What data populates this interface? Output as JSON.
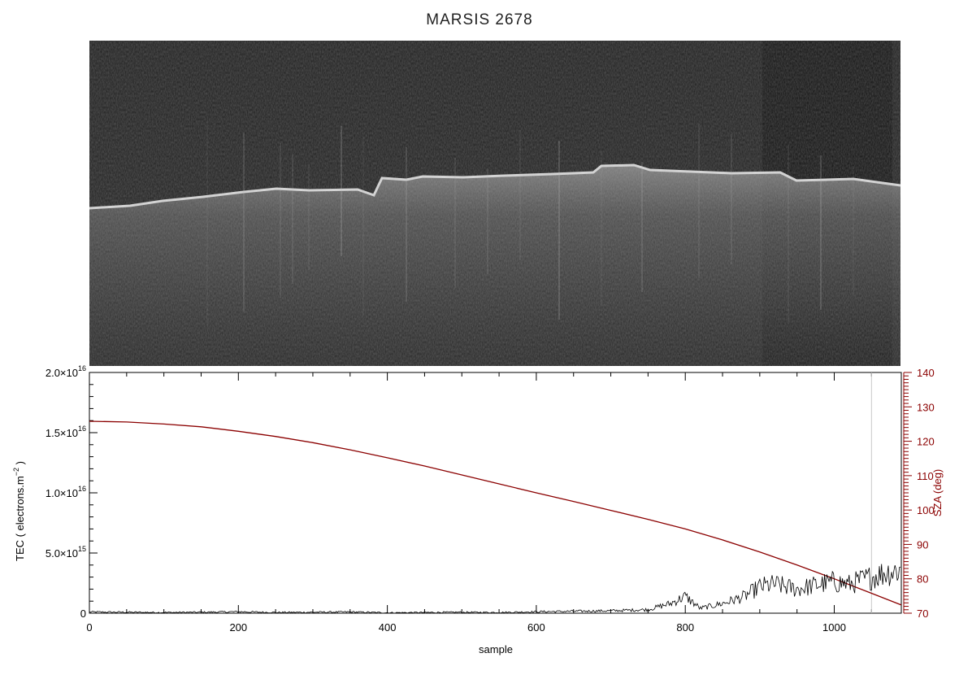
{
  "figure": {
    "title": "MARSIS 2678"
  },
  "radargram": {
    "description_visible": false
  },
  "chart_data": {
    "type": "line",
    "title": "MARSIS 2678",
    "xlabel": "sample",
    "ylabel_left": "TEC ( electrons.m^-2 )",
    "ylabel_left_parts": {
      "pre": "TEC ( electrons.m",
      "exp": "−2",
      "post": " )"
    },
    "ylabel_right": "SZA (deg)",
    "xlim": [
      0,
      1090
    ],
    "ylim_left": [
      0,
      2e+16
    ],
    "ylim_right": [
      70,
      140
    ],
    "x_ticks": [
      {
        "value": 0,
        "label": "0"
      },
      {
        "value": 200,
        "label": "200"
      },
      {
        "value": 400,
        "label": "400"
      },
      {
        "value": 600,
        "label": "600"
      },
      {
        "value": 800,
        "label": "800"
      },
      {
        "value": 1000,
        "label": "1000"
      }
    ],
    "y_left_ticks": [
      {
        "value": 0,
        "mant": "0",
        "exp": ""
      },
      {
        "value": 5000000000000000.0,
        "mant": "5.0×10",
        "exp": "15"
      },
      {
        "value": 1e+16,
        "mant": "1.0×10",
        "exp": "16"
      },
      {
        "value": 1.5e+16,
        "mant": "1.5×10",
        "exp": "16"
      },
      {
        "value": 2e+16,
        "mant": "2.0×10",
        "exp": "16"
      }
    ],
    "y_right_ticks": [
      70,
      80,
      90,
      100,
      110,
      120,
      130,
      140
    ],
    "vline_x": 1050,
    "series": [
      {
        "axis": "right",
        "color": "#8b0000",
        "x": [
          0,
          50,
          100,
          150,
          200,
          250,
          300,
          350,
          400,
          450,
          500,
          550,
          600,
          650,
          700,
          750,
          800,
          850,
          900,
          950,
          1000,
          1050,
          1090
        ],
        "y": [
          125.8,
          125.6,
          125.0,
          124.2,
          122.9,
          121.4,
          119.6,
          117.5,
          115.2,
          112.8,
          110.2,
          107.6,
          105.0,
          102.5,
          99.9,
          97.3,
          94.5,
          91.3,
          87.8,
          84.0,
          80.0,
          75.8,
          72.4
        ]
      },
      {
        "axis": "left",
        "color": "#000000",
        "x": [
          0,
          50,
          100,
          150,
          200,
          250,
          300,
          350,
          400,
          450,
          500,
          550,
          600,
          650,
          700,
          750,
          780,
          800,
          820,
          850,
          880,
          900,
          920,
          950,
          980,
          1000,
          1020,
          1050,
          1070,
          1090
        ],
        "y": [
          100000000000000.0,
          80000000000000.0,
          60000000000000.0,
          80000000000000.0,
          120000000000000.0,
          60000000000000.0,
          80000000000000.0,
          100000000000000.0,
          40000000000000.0,
          60000000000000.0,
          80000000000000.0,
          60000000000000.0,
          120000000000000.0,
          160000000000000.0,
          200000000000000.0,
          300000000000000.0,
          800000000000000.0,
          1400000000000000.0,
          400000000000000.0,
          800000000000000.0,
          1400000000000000.0,
          2200000000000000.0,
          2400000000000000.0,
          2000000000000000.0,
          2400000000000000.0,
          2600000000000000.0,
          2400000000000000.0,
          3000000000000000.0,
          3400000000000000.0,
          3600000000000000.0
        ]
      }
    ]
  }
}
